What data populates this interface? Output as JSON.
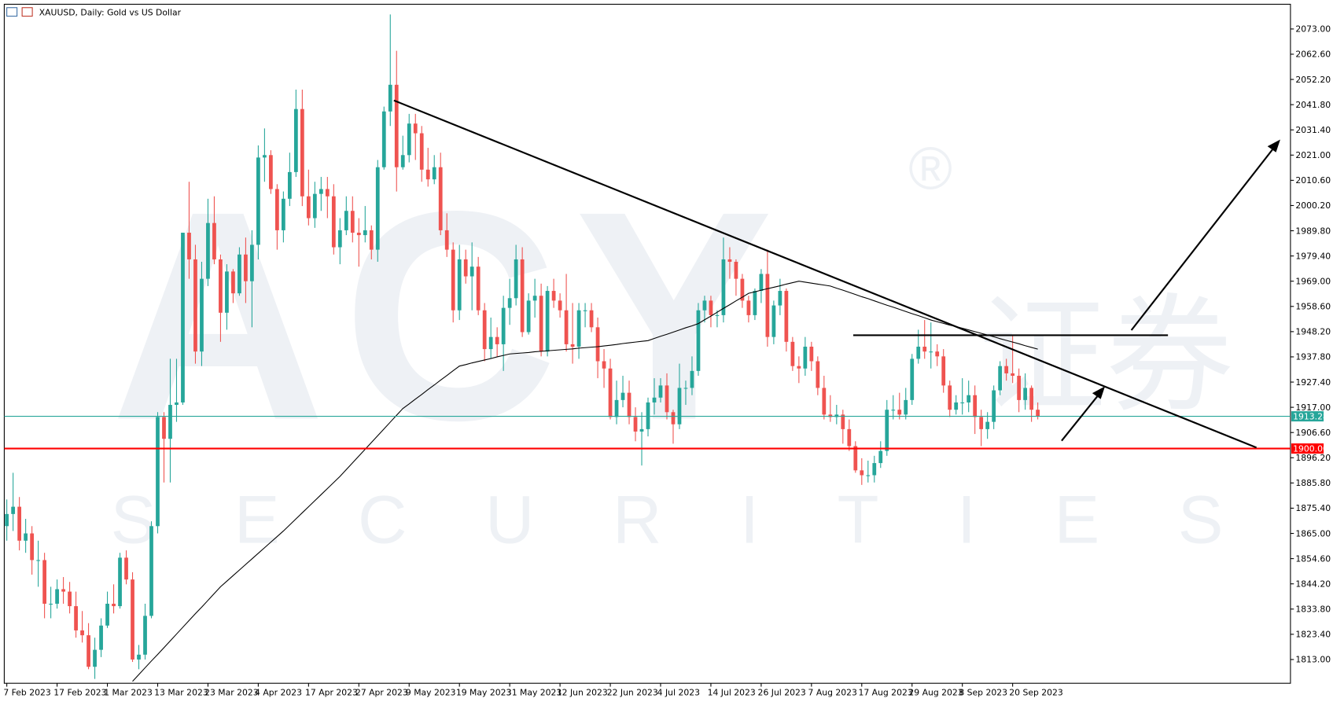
{
  "chart_data": {
    "type": "candlestick",
    "title": "XAUUSD, Daily:  Gold vs US Dollar",
    "watermark": {
      "brand": "ACY",
      "tagline": "SECURITIES",
      "chinese": "证券",
      "mark": "®"
    },
    "up_color": "#26a69a",
    "down_color": "#ef5350",
    "categories": [
      "7 Feb 2023",
      null,
      null,
      null,
      null,
      null,
      null,
      null,
      "17 Feb 2023",
      null,
      null,
      null,
      null,
      null,
      null,
      null,
      "1 Mar 2023",
      null,
      null,
      null,
      null,
      null,
      null,
      null,
      "13 Mar 2023",
      null,
      null,
      null,
      null,
      null,
      null,
      null,
      "23 Mar 2023",
      null,
      null,
      null,
      null,
      null,
      null,
      null,
      "4 Apr 2023",
      null,
      null,
      null,
      null,
      null,
      null,
      null,
      "17 Apr 2023",
      null,
      null,
      null,
      null,
      null,
      null,
      null,
      "27 Apr 2023",
      null,
      null,
      null,
      null,
      null,
      null,
      null,
      "9 May 2023",
      null,
      null,
      null,
      null,
      null,
      null,
      null,
      "19 May 2023",
      null,
      null,
      null,
      null,
      null,
      null,
      null,
      "31 May 2023",
      null,
      null,
      null,
      null,
      null,
      null,
      null,
      "12 Jun 2023",
      null,
      null,
      null,
      null,
      null,
      null,
      null,
      "22 Jun 2023",
      null,
      null,
      null,
      null,
      null,
      null,
      null,
      "4 Jul 2023",
      null,
      null,
      null,
      null,
      null,
      null,
      null,
      "14 Jul 2023",
      null,
      null,
      null,
      null,
      null,
      null,
      null,
      "26 Jul 2023",
      null,
      null,
      null,
      null,
      null,
      null,
      null,
      "7 Aug 2023",
      null,
      null,
      null,
      null,
      null,
      null,
      null,
      "17 Aug 2023",
      null,
      null,
      null,
      null,
      null,
      null,
      null,
      "29 Aug 2023",
      null,
      null,
      null,
      null,
      null,
      null,
      null,
      "8 Sep 2023",
      null,
      null,
      null,
      null,
      null,
      null,
      null,
      "20 Sep 2023",
      null,
      null,
      null,
      null
    ],
    "open": [
      1868,
      1873,
      1876,
      1862,
      1865,
      1854,
      1854,
      1836,
      1836,
      1842,
      1841,
      1835,
      1825,
      1823,
      1810,
      1817,
      1827,
      1836,
      1835,
      1855,
      1846,
      1813,
      1815,
      1831,
      1868,
      1913,
      1904,
      1918,
      1919,
      1989,
      1978,
      1940,
      1970,
      1993,
      1978,
      1956,
      1973,
      1964,
      1980,
      1969,
      1984,
      2020,
      2021,
      2007,
      1990,
      2003,
      2014,
      2040,
      2004,
      1995,
      2005,
      2007,
      2004,
      1983,
      1990,
      1998,
      1989,
      1988,
      1990,
      1982,
      2016,
      2039,
      2050,
      2016,
      2021,
      2034,
      2030,
      2015,
      2011,
      2016,
      1990,
      1982,
      1957,
      1978,
      1971,
      1975,
      1957,
      1941,
      1946,
      1943,
      1958,
      1962,
      1978,
      1948,
      1961,
      1963,
      1940,
      1965,
      1961,
      1957,
      1943,
      1942,
      1957,
      1957,
      1950,
      1936,
      1933,
      1913,
      1920,
      1923,
      1913,
      1907,
      1908,
      1919,
      1921,
      1926,
      1915,
      1910,
      1925,
      1925,
      1932,
      1957,
      1961,
      1955,
      1955,
      1978,
      1977,
      1970,
      1961,
      1955,
      1965,
      1972,
      1946,
      1959,
      1965,
      1944,
      1934,
      1933,
      1942,
      1936,
      1925,
      1914,
      1913,
      1914,
      1908,
      1901,
      1891,
      1889,
      1889,
      1894,
      1899,
      1916,
      1916,
      1914,
      1920,
      1937,
      1942,
      1940,
      1940,
      1938,
      1926,
      1916,
      1919,
      1919,
      1922,
      1913,
      1908,
      1911,
      1924,
      1934,
      1931,
      1930,
      1920,
      1925,
      1916
    ],
    "high": [
      1879,
      1890,
      1880,
      1871,
      1868,
      1862,
      1857,
      1843,
      1846,
      1847,
      1845,
      1841,
      1833,
      1828,
      1822,
      1830,
      1841,
      1844,
      1857,
      1858,
      1849,
      1819,
      1836,
      1870,
      1915,
      1915,
      1937,
      1937,
      1989,
      2010,
      1984,
      1977,
      2003,
      2004,
      1980,
      1976,
      1974,
      1983,
      1987,
      1990,
      2025,
      2032,
      2023,
      2009,
      2006,
      2022,
      2048,
      2048,
      2015,
      2010,
      2012,
      2012,
      2009,
      1995,
      2004,
      2004,
      1995,
      2000,
      1992,
      2019,
      2041,
      2079,
      2064,
      2029,
      2038,
      2038,
      2033,
      2024,
      2021,
      2022,
      1997,
      1985,
      1984,
      1982,
      1985,
      1979,
      1960,
      1954,
      1950,
      1963,
      1970,
      1984,
      1983,
      1964,
      1970,
      1968,
      1967,
      1970,
      1964,
      1972,
      1960,
      1960,
      1960,
      1960,
      1954,
      1941,
      1937,
      1928,
      1930,
      1928,
      1917,
      1915,
      1921,
      1929,
      1929,
      1931,
      1916,
      1935,
      1928,
      1938,
      1960,
      1963,
      1963,
      1957,
      1987,
      1983,
      1978,
      1972,
      1963,
      1966,
      1974,
      1982,
      1961,
      1970,
      1966,
      1946,
      1938,
      1946,
      1944,
      1938,
      1930,
      1922,
      1918,
      1916,
      1912,
      1903,
      1896,
      1895,
      1897,
      1903,
      1920,
      1922,
      1923,
      1925,
      1939,
      1949,
      1953,
      1952,
      1943,
      1941,
      1928,
      1922,
      1929,
      1928,
      1926,
      1916,
      1915,
      1926,
      1936,
      1937,
      1947,
      1933,
      1931,
      1926,
      1919
    ],
    "low": [
      1862,
      1866,
      1858,
      1857,
      1848,
      1843,
      1830,
      1830,
      1834,
      1836,
      1832,
      1822,
      1820,
      1809,
      1805,
      1814,
      1826,
      1832,
      1834,
      1844,
      1812,
      1809,
      1813,
      1830,
      1865,
      1886,
      1886,
      1911,
      1918,
      1970,
      1935,
      1934,
      1967,
      1976,
      1944,
      1949,
      1960,
      1963,
      1960,
      1950,
      1978,
      2010,
      2005,
      1982,
      1985,
      2000,
      2012,
      2000,
      1992,
      1991,
      1998,
      1995,
      1980,
      1976,
      1988,
      1985,
      1975,
      1985,
      1978,
      1977,
      2015,
      2033,
      2006,
      2015,
      2018,
      2019,
      2010,
      2008,
      2009,
      1988,
      1979,
      1952,
      1953,
      1968,
      1957,
      1955,
      1936,
      1937,
      1938,
      1932,
      1951,
      1959,
      1946,
      1947,
      1954,
      1938,
      1938,
      1958,
      1954,
      1940,
      1935,
      1937,
      1950,
      1948,
      1929,
      1925,
      1912,
      1910,
      1917,
      1910,
      1903,
      1893,
      1905,
      1914,
      1919,
      1912,
      1902,
      1908,
      1918,
      1922,
      1930,
      1952,
      1950,
      1950,
      1952,
      1970,
      1963,
      1958,
      1952,
      1953,
      1960,
      1942,
      1943,
      1955,
      1940,
      1932,
      1927,
      1930,
      1932,
      1922,
      1912,
      1911,
      1910,
      1902,
      1899,
      1890,
      1885,
      1886,
      1886,
      1892,
      1897,
      1912,
      1912,
      1912,
      1918,
      1935,
      1937,
      1933,
      1934,
      1923,
      1913,
      1914,
      1914,
      1915,
      1906,
      1901,
      1904,
      1908,
      1922,
      1928,
      1927,
      1915,
      1916,
      1911,
      1912
    ],
    "close": [
      1873,
      1876,
      1862,
      1865,
      1854,
      1854,
      1836,
      1836,
      1842,
      1841,
      1835,
      1825,
      1823,
      1810,
      1817,
      1827,
      1836,
      1835,
      1855,
      1846,
      1813,
      1815,
      1831,
      1868,
      1913,
      1904,
      1918,
      1919,
      1989,
      1978,
      1940,
      1970,
      1993,
      1978,
      1956,
      1973,
      1964,
      1980,
      1969,
      1984,
      2020,
      2021,
      2007,
      1990,
      2003,
      2014,
      2040,
      2004,
      1995,
      2005,
      2007,
      2004,
      1983,
      1990,
      1998,
      1989,
      1988,
      1990,
      1982,
      2016,
      2039,
      2050,
      2016,
      2021,
      2034,
      2030,
      2015,
      2011,
      2016,
      1990,
      1982,
      1957,
      1978,
      1971,
      1975,
      1957,
      1941,
      1946,
      1943,
      1958,
      1962,
      1978,
      1948,
      1961,
      1963,
      1940,
      1965,
      1961,
      1957,
      1943,
      1942,
      1957,
      1957,
      1950,
      1936,
      1933,
      1913,
      1920,
      1923,
      1913,
      1907,
      1908,
      1919,
      1921,
      1926,
      1915,
      1910,
      1925,
      1925,
      1932,
      1957,
      1961,
      1955,
      1955,
      1978,
      1977,
      1970,
      1961,
      1955,
      1965,
      1972,
      1946,
      1959,
      1965,
      1944,
      1934,
      1933,
      1942,
      1936,
      1925,
      1914,
      1913,
      1914,
      1908,
      1901,
      1891,
      1889,
      1889,
      1894,
      1899,
      1916,
      1916,
      1914,
      1920,
      1937,
      1942,
      1940,
      1940,
      1938,
      1926,
      1916,
      1919,
      1919,
      1922,
      1913,
      1908,
      1911,
      1924,
      1934,
      1931,
      1930,
      1920,
      1925,
      1916,
      1913.28
    ],
    "ma": {
      "color": "#000000",
      "values": [
        null,
        null,
        null,
        null,
        null,
        null,
        null,
        null,
        null,
        null,
        null,
        null,
        null,
        null,
        null,
        null,
        null,
        null,
        null,
        null,
        1804,
        1806.8,
        1809.6,
        1812.4,
        1815.1,
        1817.9,
        1820.7,
        1823.5,
        1826.3,
        1829.1,
        1831.9,
        1834.6,
        1837.4,
        1840.2,
        1843,
        1845.3,
        1847.6,
        1849.9,
        1852.2,
        1854.5,
        1856.8,
        1859.1,
        1861.4,
        1863.7,
        1866,
        1868.5,
        1871,
        1873.5,
        1876,
        1878.5,
        1881,
        1883.5,
        1886,
        1888.5,
        1891.3,
        1894.1,
        1896.9,
        1899.7,
        1902.5,
        1905.3,
        1908.1,
        1910.9,
        1913.7,
        1916.5,
        1918.4,
        1920.4,
        1922.3,
        1924.3,
        1926.2,
        1928.2,
        1930.1,
        1932.1,
        1934,
        1934.6,
        1935.3,
        1935.9,
        1936.5,
        1937.1,
        1937.8,
        1938.4,
        1939,
        1939.2,
        1939.4,
        1939.6,
        1939.9,
        1940.1,
        1940.3,
        1940.5,
        1940.7,
        1940.9,
        1941.1,
        1941.4,
        1941.6,
        1941.8,
        1942,
        1942.3,
        1942.6,
        1942.9,
        1943.3,
        1943.6,
        1943.9,
        1944.2,
        1944.5,
        1945.4,
        1946.3,
        1947.1,
        1948,
        1948.9,
        1949.8,
        1950.6,
        1951.5,
        1953.1,
        1954.6,
        1956.2,
        1957.8,
        1959.3,
        1960.9,
        1962.4,
        1964,
        1964.6,
        1965.3,
        1965.9,
        1966.5,
        1967.1,
        1967.8,
        1968.4,
        1969,
        1968.6,
        1968.2,
        1967.8,
        1967.4,
        1967,
        1966.1,
        1965.3,
        1964.4,
        1963.5,
        1962.6,
        1961.8,
        1960.9,
        1960,
        1959.1,
        1958.3,
        1957.4,
        1956.5,
        1955.6,
        1954.8,
        1953.9,
        1953,
        1952.3,
        1951.6,
        1950.9,
        1950.3,
        1949.6,
        1948.9,
        1948.2,
        1947.5,
        1946.8,
        1946.1,
        1945.3,
        1944.6,
        1943.9,
        1943.2,
        1942.4,
        1941.7,
        1941
      ]
    },
    "price_lines": [
      {
        "value": 1913.28,
        "label": "1913.28",
        "color": "#26a69a"
      },
      {
        "value": 1900,
        "label": "1900.00",
        "color": "#ff0000"
      }
    ],
    "ylim": [
      1803.2,
      2083.2
    ],
    "yticks": [
      {
        "value": 2073,
        "label": "2073.00"
      },
      {
        "value": 2062.6,
        "label": "2062.60"
      },
      {
        "value": 2052.2,
        "label": "2052.20"
      },
      {
        "value": 2041.8,
        "label": "2041.80"
      },
      {
        "value": 2031.4,
        "label": "2031.40"
      },
      {
        "value": 2021,
        "label": "2021.00"
      },
      {
        "value": 2010.6,
        "label": "2010.60"
      },
      {
        "value": 2000.2,
        "label": "2000.20"
      },
      {
        "value": 1989.8,
        "label": "1989.80"
      },
      {
        "value": 1979.4,
        "label": "1979.40"
      },
      {
        "value": 1969,
        "label": "1969.00"
      },
      {
        "value": 1958.6,
        "label": "1958.60"
      },
      {
        "value": 1948.2,
        "label": "1948.20"
      },
      {
        "value": 1937.8,
        "label": "1937.80"
      },
      {
        "value": 1927.4,
        "label": "1927.40"
      },
      {
        "value": 1917,
        "label": "1917.00"
      },
      {
        "value": 1906.6,
        "label": "1906.60"
      },
      {
        "value": 1896.2,
        "label": "1896.20"
      },
      {
        "value": 1885.8,
        "label": "1885.80"
      },
      {
        "value": 1875.4,
        "label": "1875.40"
      },
      {
        "value": 1865,
        "label": "1865.00"
      },
      {
        "value": 1854.6,
        "label": "1854.60"
      },
      {
        "value": 1844.2,
        "label": "1844.20"
      },
      {
        "value": 1833.8,
        "label": "1833.80"
      },
      {
        "value": 1823.4,
        "label": "1823.40"
      },
      {
        "value": 1813,
        "label": "1813.00"
      }
    ],
    "grid": false
  }
}
